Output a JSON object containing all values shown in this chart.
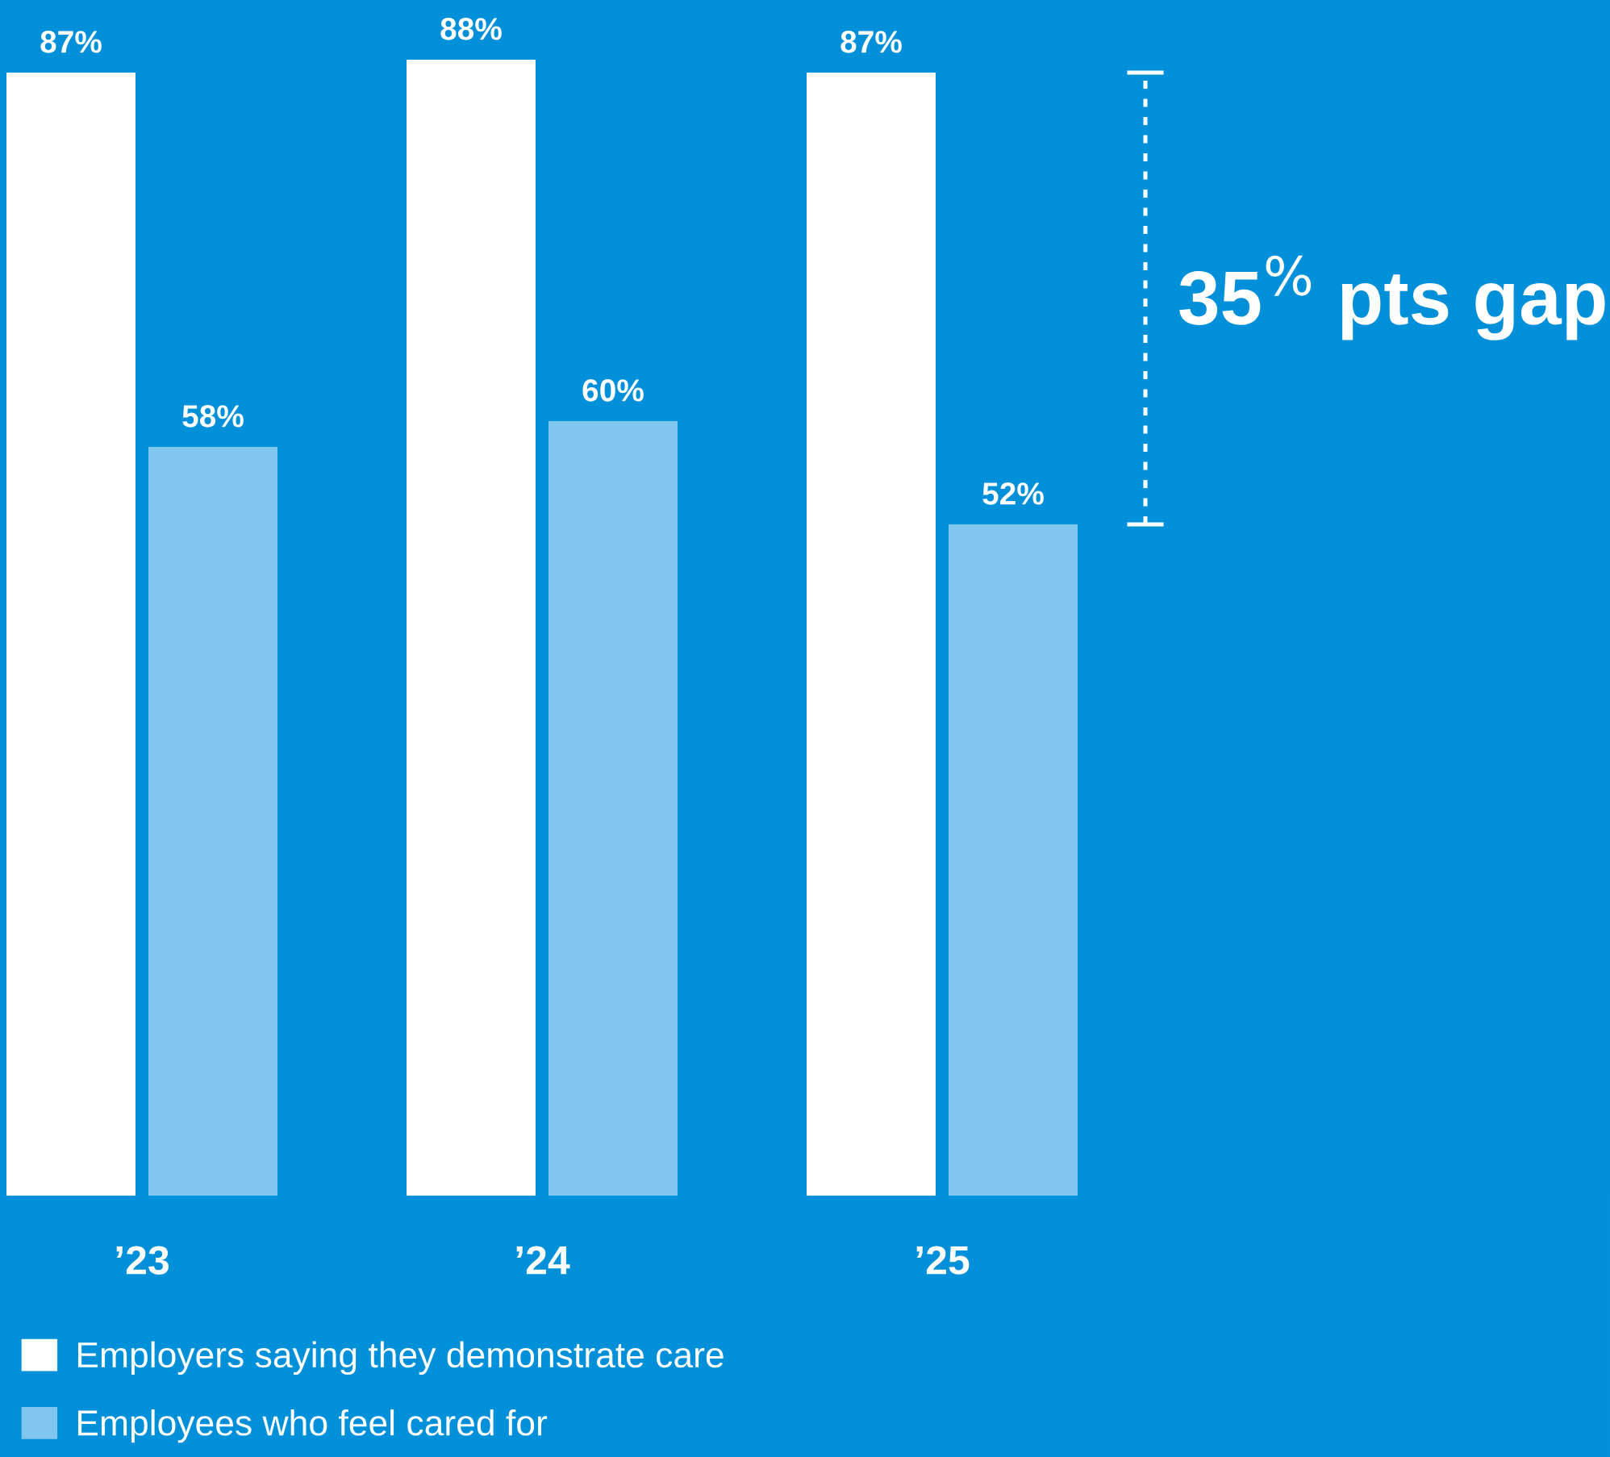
{
  "chart_data": {
    "type": "bar",
    "categories": [
      "’23",
      "’24",
      "’25"
    ],
    "series": [
      {
        "name": "Employers saying they demonstrate care",
        "color": "#ffffff",
        "values": [
          87,
          88,
          87
        ],
        "value_labels": [
          "87%",
          "88%",
          "87%"
        ]
      },
      {
        "name": "Employees who feel cared for",
        "color": "#7fc7ef",
        "values": [
          58,
          60,
          52
        ],
        "value_labels": [
          "58%",
          "60%",
          "52%"
        ]
      }
    ],
    "tick_labels": "x",
    "legend": "bottom left",
    "annotations": [
      "35$^{%}$ pts gap"
    ]
  }
}
